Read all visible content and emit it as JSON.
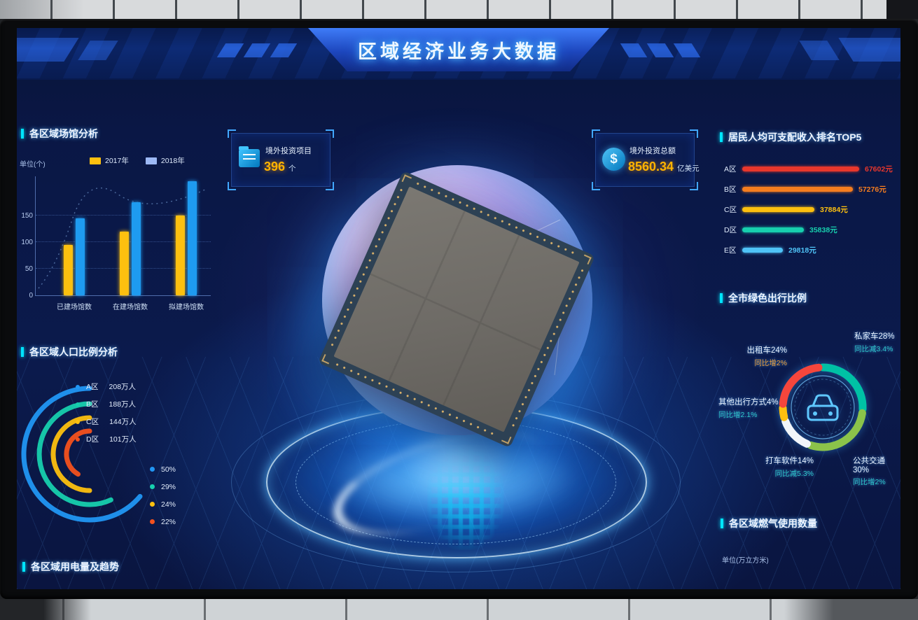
{
  "title": "区域经济业务大数据",
  "venues_chart": {
    "title": "各区域场馆分析",
    "unit": "单位(个)",
    "type": "bar",
    "categories": [
      "已建场馆数",
      "在建场馆数",
      "拟建场馆数"
    ],
    "series": [
      {
        "name": "2017年",
        "color": "#fdc00f",
        "legend_color": "#fdc00f",
        "values": [
          95,
          120,
          150
        ]
      },
      {
        "name": "2018年",
        "color": "#1e9bf0",
        "legend_color": "#9db9f5",
        "values": [
          145,
          175,
          215
        ]
      }
    ],
    "yticks": [
      0,
      50,
      100,
      150
    ],
    "ylim": [
      0,
      220
    ]
  },
  "invest_cards": [
    {
      "label": "境外投资项目",
      "value": "396",
      "unit": "个",
      "icon": "folder-icon"
    },
    {
      "label": "境外投资总额",
      "value": "8560.34",
      "unit": "亿美元",
      "icon": "dollar-icon"
    }
  ],
  "income_top5": {
    "title": "居民人均可支配收入排名TOP5",
    "type": "bar",
    "rows": [
      {
        "label": "A区",
        "value": "67602元",
        "length": 167,
        "color": "#e8372c"
      },
      {
        "label": "B区",
        "value": "57276元",
        "length": 158,
        "color": "#f57d1f"
      },
      {
        "label": "C区",
        "value": "37884元",
        "length": 103,
        "color": "#fdc00f"
      },
      {
        "label": "D区",
        "value": "35838元",
        "length": 88,
        "color": "#17cfae"
      },
      {
        "label": "E区",
        "value": "29818元",
        "length": 58,
        "color": "#4fc3f7"
      }
    ]
  },
  "population": {
    "title": "各区域人口比例分析",
    "type": "arc",
    "rows": [
      {
        "label": "A区",
        "value": "208万人",
        "color": "#2196f3",
        "radius": 94,
        "sweep": 230
      },
      {
        "label": "B区",
        "value": "188万人",
        "color": "#17cfae",
        "radius": 72,
        "sweep": 205
      },
      {
        "label": "C区",
        "value": "144万人",
        "color": "#fdc00f",
        "radius": 52,
        "sweep": 180
      },
      {
        "label": "D区",
        "value": "101万人",
        "color": "#f4511e",
        "radius": 33,
        "sweep": 150
      }
    ],
    "legend": [
      {
        "label": "50%",
        "color": "#2196f3"
      },
      {
        "label": "29%",
        "color": "#17cfae"
      },
      {
        "label": "24%",
        "color": "#fdc00f"
      },
      {
        "label": "22%",
        "color": "#f4511e"
      }
    ]
  },
  "green_travel": {
    "title": "全市绿色出行比例",
    "type": "donut",
    "center_icon": "car-icon",
    "segments": [
      {
        "label": "私家车28%",
        "sub": "同比减3.4%",
        "value": 28,
        "color": "#00c1a5",
        "sub_color": "#2ec7c9",
        "pos": "top-right"
      },
      {
        "label": "公共交通30%",
        "sub": "同比增2%",
        "value": 30,
        "color": "#8bc34a",
        "sub_color": "#2ec7c9",
        "pos": "bottom-right"
      },
      {
        "label": "打车软件14%",
        "sub": "同比减5.3%",
        "value": 14,
        "color": "#f2f6fa",
        "sub_color": "#2ec7c9",
        "pos": "bottom-left"
      },
      {
        "label": "其他出行方式4%",
        "sub": "同比增2.1%",
        "value": 4,
        "color": "#fdc00f",
        "sub_color": "#2ec7c9",
        "pos": "left"
      },
      {
        "label": "出租车24%",
        "sub": "同比增2%",
        "value": 24,
        "color": "#f5463c",
        "sub_color": "#f0a23c",
        "pos": "top-left"
      }
    ]
  },
  "electricity": {
    "title": "各区域用电量及趋势"
  },
  "gas": {
    "title": "各区域燃气使用数量",
    "unit": "单位(万立方米)"
  }
}
